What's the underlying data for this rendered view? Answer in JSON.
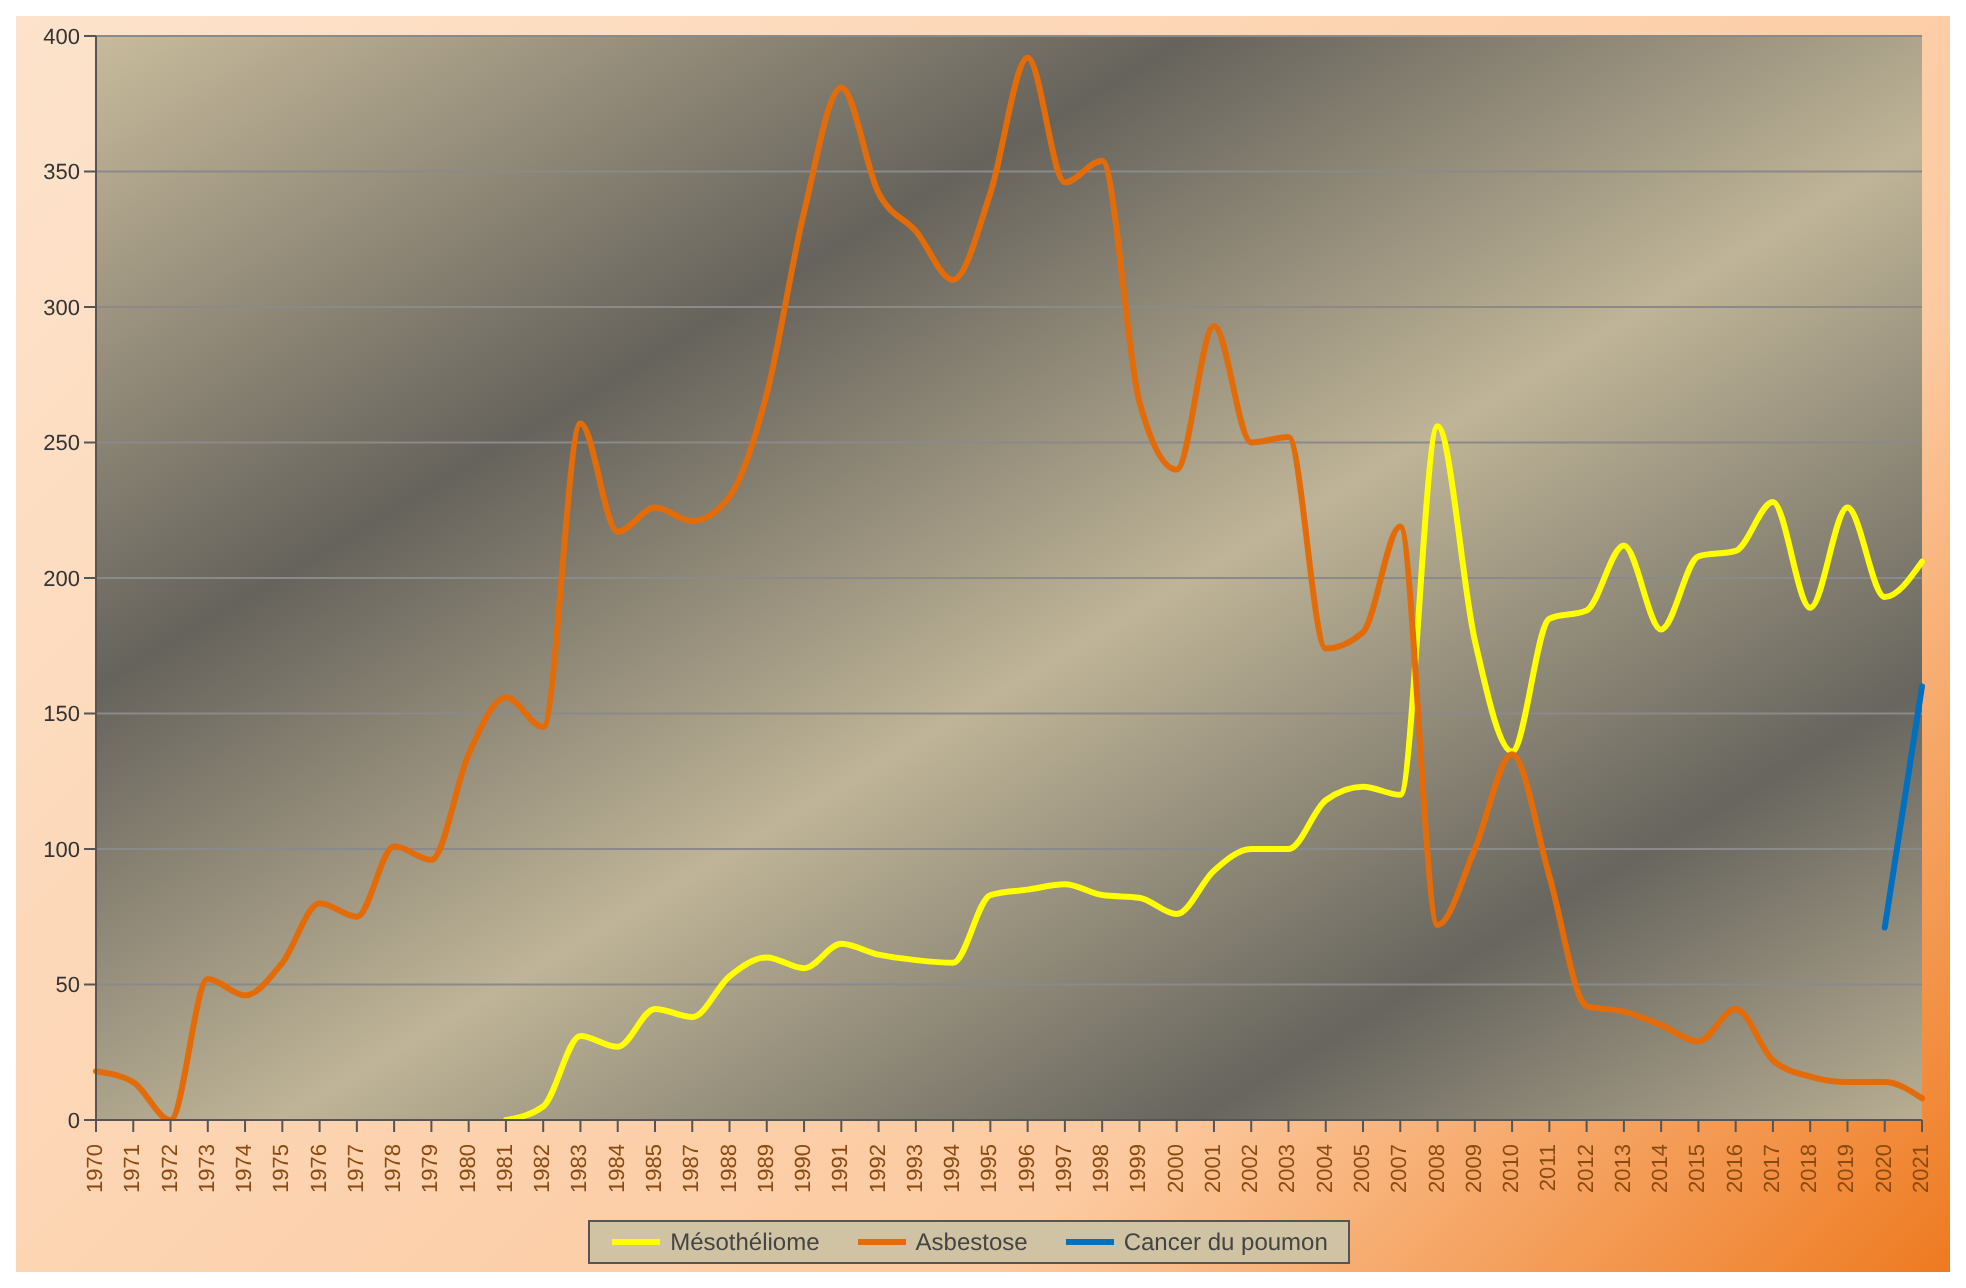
{
  "chart_data": {
    "type": "line",
    "categories": [
      "1970",
      "1971",
      "1972",
      "1973",
      "1974",
      "1975",
      "1976",
      "1977",
      "1978",
      "1979",
      "1980",
      "1981",
      "1982",
      "1983",
      "1984",
      "1985",
      "1987",
      "1988",
      "1989",
      "1990",
      "1991",
      "1992",
      "1993",
      "1994",
      "1995",
      "1996",
      "1997",
      "1998",
      "1999",
      "2000",
      "2001",
      "2002",
      "2003",
      "2004",
      "2005",
      "2007",
      "2008",
      "2009",
      "2010",
      "2011",
      "2012",
      "2013",
      "2014",
      "2015",
      "2016",
      "2017",
      "2018",
      "2019",
      "2020",
      "2021"
    ],
    "series": [
      {
        "name": "Mésothéliome",
        "color": "#ffff00",
        "values": [
          null,
          null,
          null,
          null,
          null,
          null,
          null,
          null,
          null,
          null,
          null,
          0,
          5,
          31,
          27,
          41,
          38,
          53,
          60,
          56,
          65,
          61,
          59,
          58,
          83,
          85,
          87,
          83,
          82,
          76,
          92,
          100,
          100,
          118,
          123,
          120,
          256,
          177,
          136,
          185,
          188,
          212,
          181,
          208,
          210,
          228,
          189,
          226,
          193,
          206
        ]
      },
      {
        "name": "Asbestose",
        "color": "#e36c09",
        "values": [
          18,
          14,
          0,
          52,
          46,
          58,
          80,
          75,
          101,
          96,
          135,
          156,
          145,
          257,
          217,
          226,
          221,
          230,
          268,
          335,
          381,
          342,
          328,
          310,
          342,
          392,
          346,
          354,
          265,
          240,
          293,
          250,
          252,
          174,
          180,
          219,
          72,
          100,
          135,
          90,
          42,
          40,
          35,
          29,
          41,
          22,
          16,
          14,
          14,
          8
        ]
      },
      {
        "name": "Cancer du poumon",
        "color": "#0070c0",
        "values": [
          null,
          null,
          null,
          null,
          null,
          null,
          null,
          null,
          null,
          null,
          null,
          null,
          null,
          null,
          null,
          null,
          null,
          null,
          null,
          null,
          null,
          null,
          null,
          null,
          null,
          null,
          null,
          null,
          null,
          null,
          null,
          null,
          null,
          null,
          null,
          null,
          null,
          null,
          null,
          null,
          null,
          null,
          null,
          null,
          null,
          null,
          null,
          null,
          71,
          160
        ]
      }
    ],
    "ylim": [
      0,
      400
    ],
    "yticks": [
      0,
      50,
      100,
      150,
      200,
      250,
      300,
      350,
      400
    ],
    "grid": "y",
    "legend": "bottom",
    "marker": "none",
    "line_style": "solid"
  }
}
